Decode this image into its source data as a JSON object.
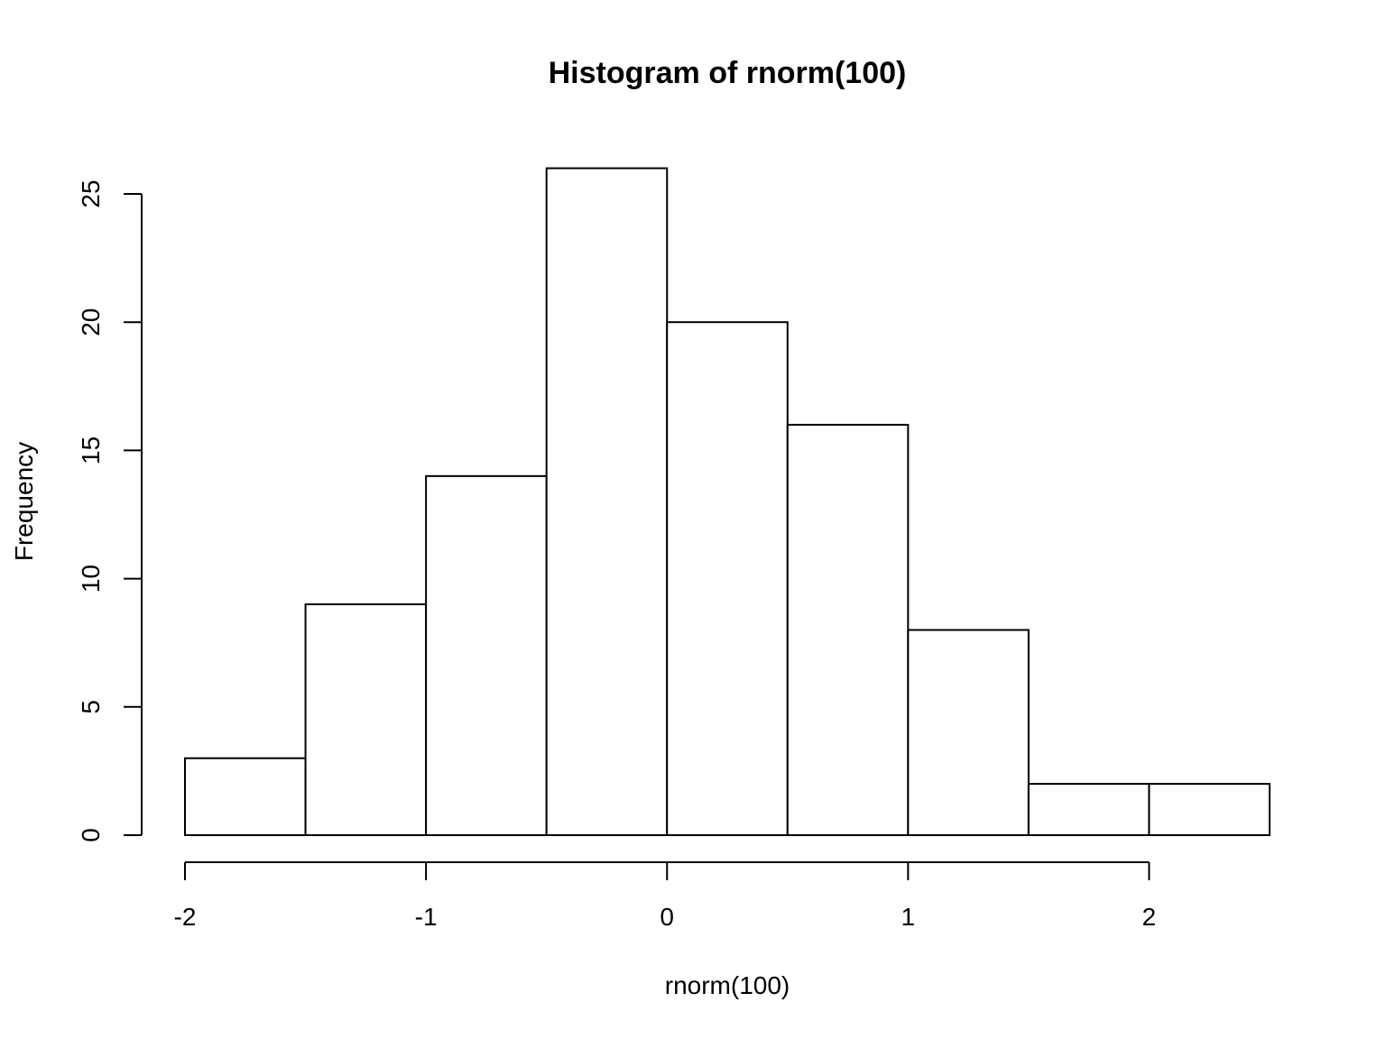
{
  "chart_data": {
    "type": "bar",
    "title": "Histogram of rnorm(100)",
    "xlabel": "rnorm(100)",
    "ylabel": "Frequency",
    "bins": [
      {
        "start": -2.0,
        "end": -1.5,
        "count": 3
      },
      {
        "start": -1.5,
        "end": -1.0,
        "count": 9
      },
      {
        "start": -1.0,
        "end": -0.5,
        "count": 14
      },
      {
        "start": -0.5,
        "end": 0.0,
        "count": 26
      },
      {
        "start": 0.0,
        "end": 0.5,
        "count": 20
      },
      {
        "start": 0.5,
        "end": 1.0,
        "count": 16
      },
      {
        "start": 1.0,
        "end": 1.5,
        "count": 8
      },
      {
        "start": 1.5,
        "end": 2.0,
        "count": 2
      },
      {
        "start": 2.0,
        "end": 2.5,
        "count": 2
      }
    ],
    "xticks": [
      -2,
      -1,
      0,
      1,
      2
    ],
    "yticks": [
      0,
      5,
      10,
      15,
      20,
      25
    ],
    "xlim": [
      -2,
      2.5
    ],
    "ylim": [
      0,
      26
    ],
    "grid": false
  }
}
